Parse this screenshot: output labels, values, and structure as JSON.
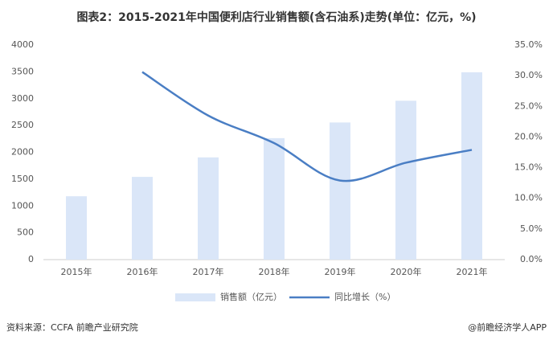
{
  "chart_data": {
    "type": "bar",
    "title": "图表2：2015-2021年中国便利店行业销售额(含石油系)走势(单位：亿元，%)",
    "categories": [
      "2015年",
      "2016年",
      "2017年",
      "2018年",
      "2019年",
      "2020年",
      "2021年"
    ],
    "series": [
      {
        "name": "销售额（亿元）",
        "type": "bar",
        "color": "#dae6f8",
        "axis": "y",
        "values": [
          1181,
          1542,
          1905,
          2264,
          2556,
          2961,
          3492
        ]
      },
      {
        "name": "同比增长（%）",
        "type": "line",
        "color": "#4a7ec4",
        "axis": "y2",
        "values": [
          null,
          30.6,
          23.5,
          19.0,
          12.9,
          15.8,
          17.9
        ]
      }
    ],
    "ylim": [
      0,
      4000
    ],
    "yticks": [
      0,
      500,
      1000,
      1500,
      2000,
      2500,
      3000,
      3500,
      4000
    ],
    "y2lim": [
      0,
      35
    ],
    "y2ticks": [
      {
        "value": 0,
        "label": "0.0%"
      },
      {
        "value": 5,
        "label": "5.0%"
      },
      {
        "value": 10,
        "label": "10.0%"
      },
      {
        "value": 15,
        "label": "15.0%"
      },
      {
        "value": 20,
        "label": "20.0%"
      },
      {
        "value": 25,
        "label": "25.0%"
      },
      {
        "value": 30,
        "label": "30.0%"
      },
      {
        "value": 35,
        "label": "35.0%"
      }
    ],
    "grid": false,
    "source": "资料来源：CCFA 前瞻产业研究院",
    "credit": "@前瞻经济学人APP"
  }
}
